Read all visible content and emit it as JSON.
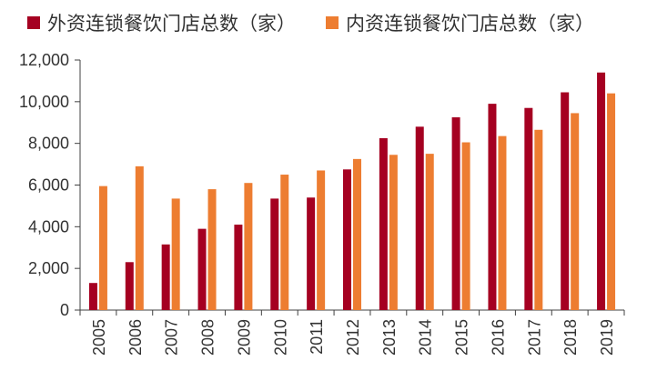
{
  "chart_data": {
    "type": "bar",
    "title": "",
    "xlabel": "",
    "ylabel": "",
    "categories": [
      "2005",
      "2006",
      "2007",
      "2008",
      "2009",
      "2010",
      "2011",
      "2012",
      "2013",
      "2014",
      "2015",
      "2016",
      "2017",
      "2018",
      "2019"
    ],
    "series": [
      {
        "name": "外资连锁餐饮门店总数（家）",
        "color": "#a50021",
        "values": [
          1300,
          2300,
          3150,
          3900,
          4100,
          5350,
          5400,
          6750,
          8250,
          8800,
          9250,
          9900,
          9700,
          10450,
          11400
        ]
      },
      {
        "name": "内资连锁餐饮门店总数（家）",
        "color": "#ed7d31",
        "values": [
          5950,
          6900,
          5350,
          5800,
          6100,
          6500,
          6700,
          7250,
          7450,
          7500,
          8050,
          8350,
          8650,
          9450,
          10400
        ]
      }
    ],
    "ylim": [
      0,
      12000
    ],
    "yticks": [
      0,
      2000,
      4000,
      6000,
      8000,
      10000,
      12000
    ],
    "ytick_labels": [
      "0",
      "2,000",
      "4,000",
      "6,000",
      "8,000",
      "10,000",
      "12,000"
    ],
    "grid": false,
    "legend_position": "top"
  }
}
